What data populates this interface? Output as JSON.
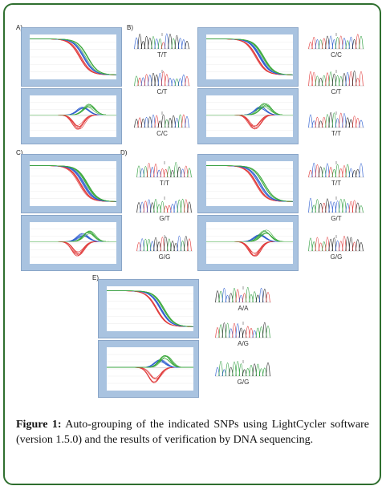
{
  "panels": [
    {
      "letter": "A)",
      "genotypes": [
        "T/T",
        "C/T",
        "C/C"
      ]
    },
    {
      "letter": "B)",
      "genotypes": [
        "C/C",
        "C/T",
        "T/T"
      ]
    },
    {
      "letter": "C)",
      "genotypes": [
        "T/T",
        "G/T",
        "G/G"
      ]
    },
    {
      "letter": "D)",
      "genotypes": [
        "T/T",
        "G/T",
        "G/G"
      ]
    },
    {
      "letter": "E)",
      "genotypes": [
        "A/A",
        "A/G",
        "G/G"
      ]
    }
  ],
  "caption": {
    "label": "Figure 1:",
    "text": " Auto-grouping of the indicated SNPs using LightCycler software (version 1.5.0) and the results of verification by DNA sequencing."
  },
  "colors": {
    "frame": "#2f6f2f",
    "plot_bg": "#a9c3e0",
    "curve_red": "#e03a3a",
    "curve_blue": "#2f5fd0",
    "curve_green": "#3aa83a",
    "seq_colors": [
      "#2e9e3e",
      "#2f5fd0",
      "#e03a3a",
      "#222222"
    ]
  }
}
